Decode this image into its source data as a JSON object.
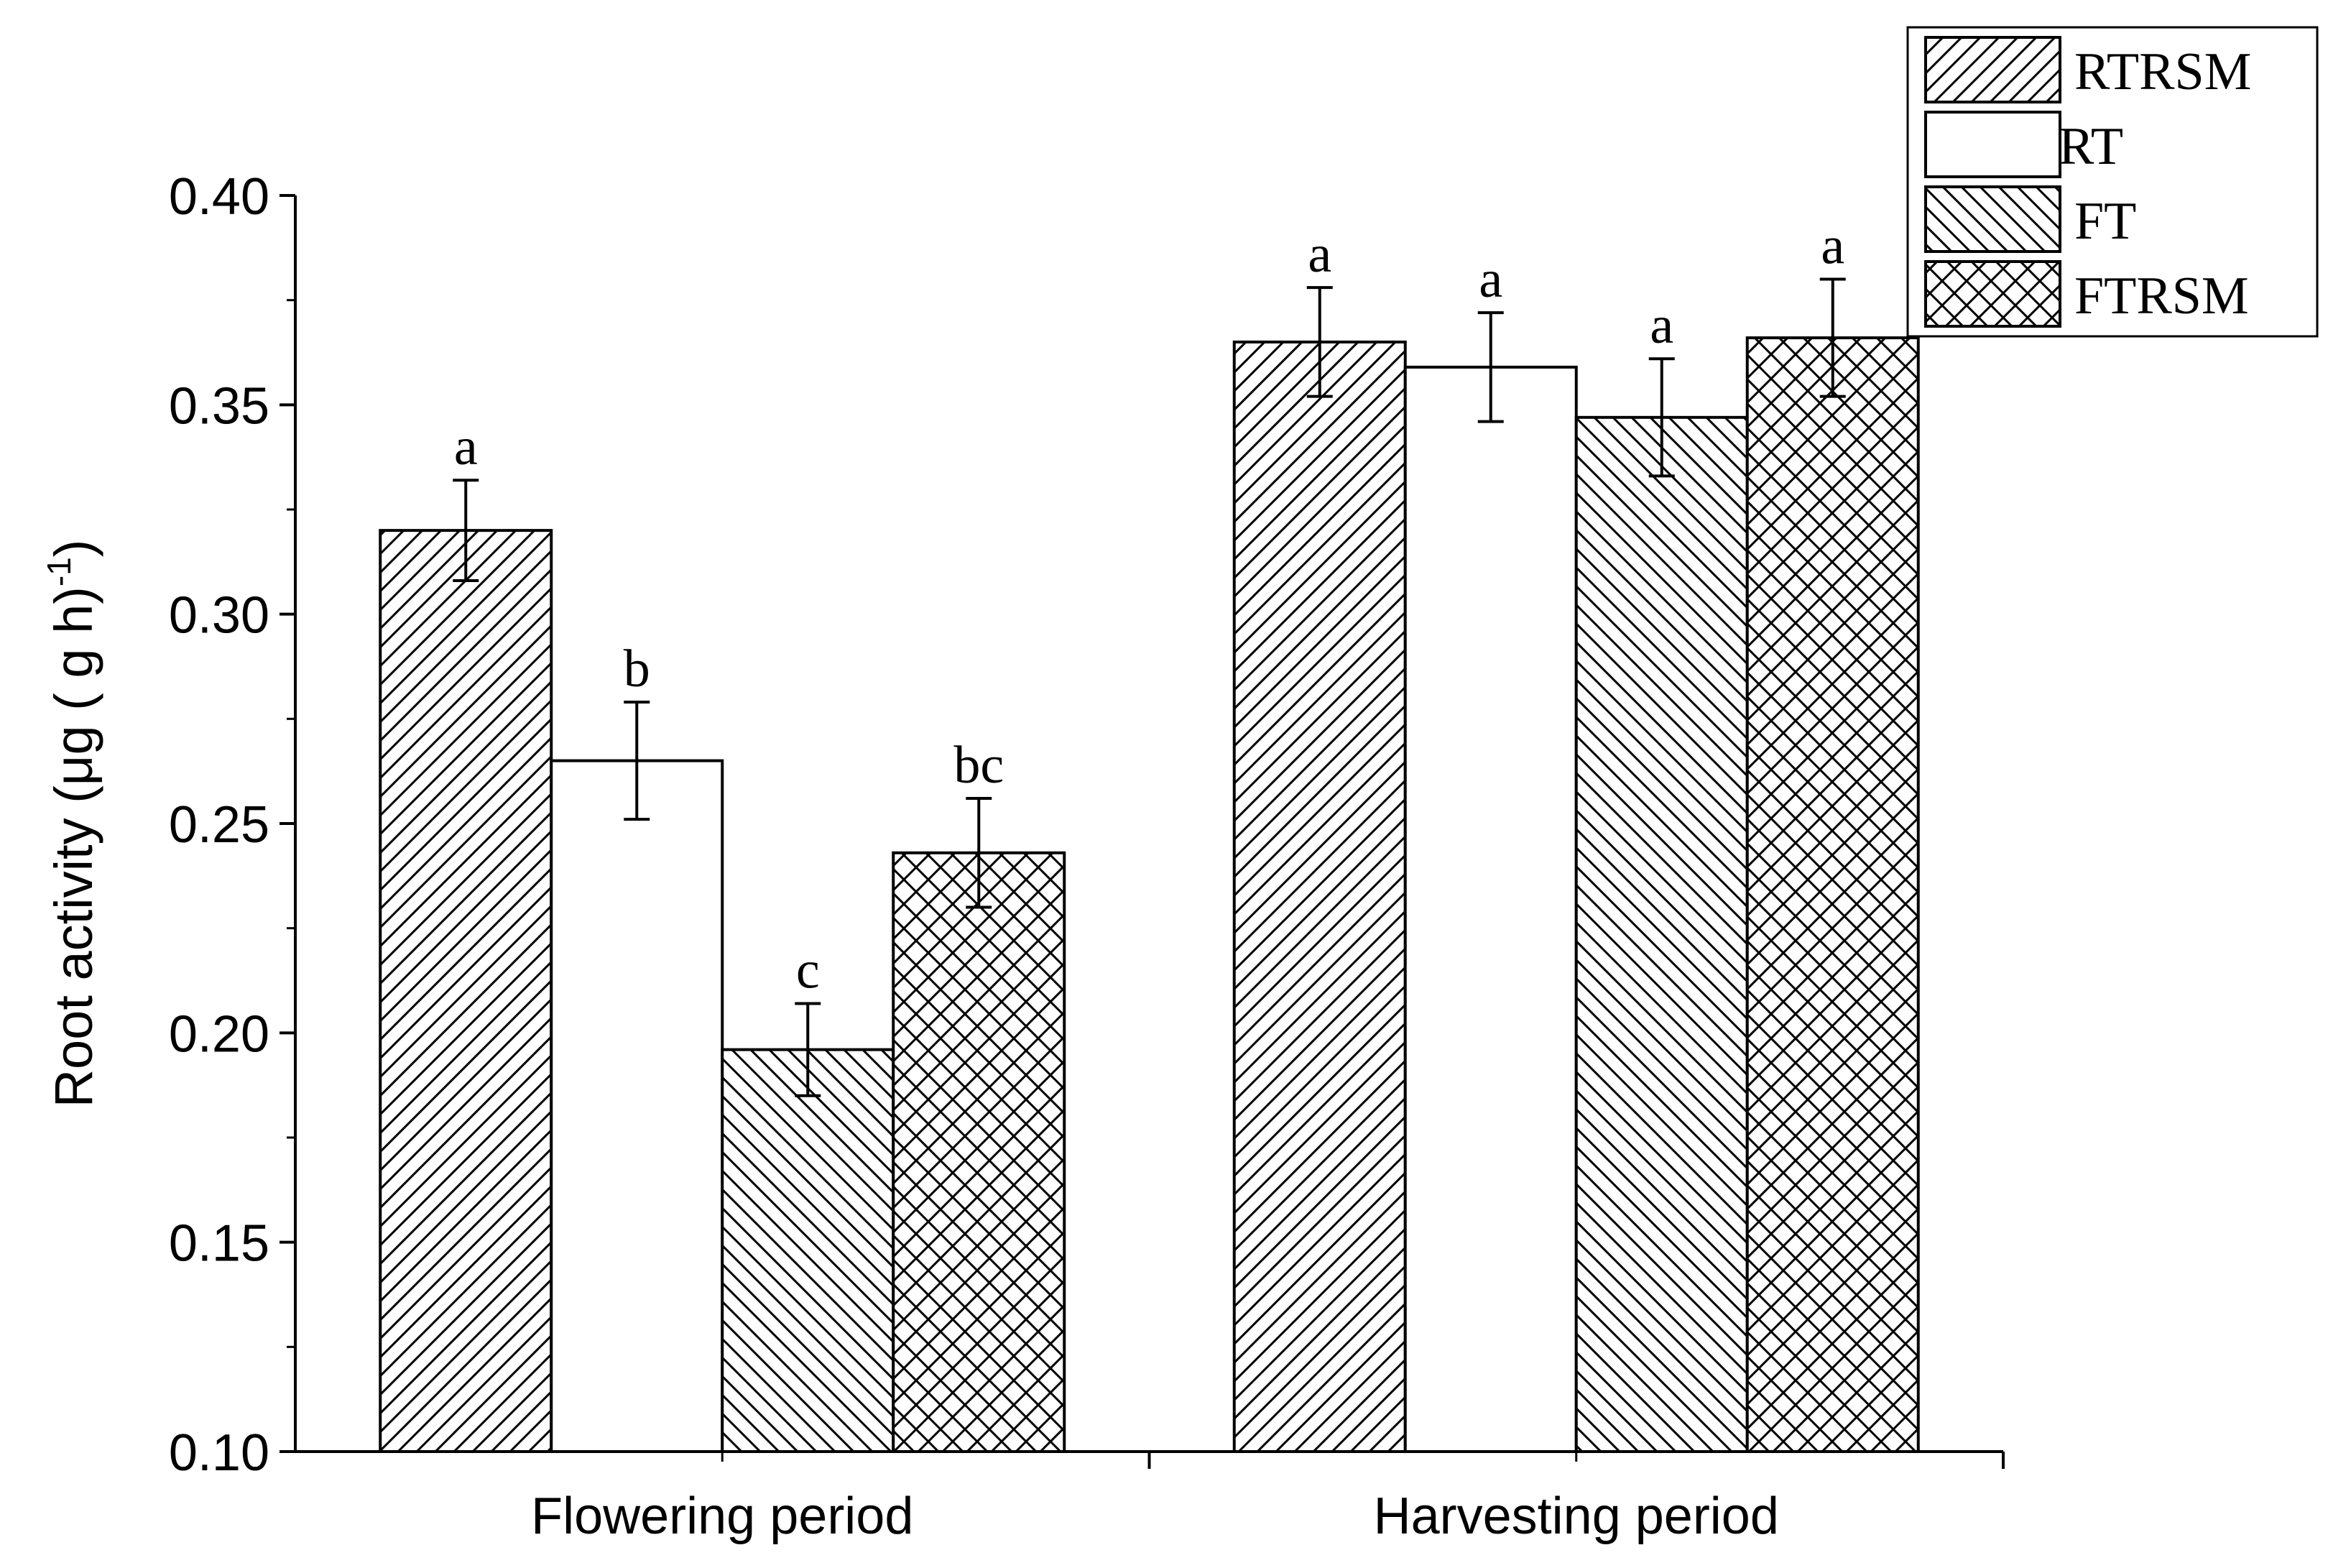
{
  "chart_data": {
    "type": "bar",
    "title": "",
    "xlabel": "",
    "ylabel_main": "Root activity (μg ( g h)",
    "ylabel_sup": "-1",
    "ylabel_close": ")",
    "ylim": [
      0.1,
      0.4
    ],
    "yticks": [
      "0.10",
      "0.15",
      "0.20",
      "0.25",
      "0.30",
      "0.35",
      "0.40"
    ],
    "yticks_values": [
      0.1,
      0.15,
      0.2,
      0.25,
      0.3,
      0.35,
      0.4
    ],
    "categories": [
      "Flowering period",
      "Harvesting period"
    ],
    "series": [
      {
        "name": "RTRSM",
        "pattern": "diag-right",
        "values": [
          0.32,
          0.365
        ],
        "errors": [
          0.012,
          0.013
        ],
        "letters": [
          "a",
          "a"
        ]
      },
      {
        "name": "RT",
        "pattern": "none",
        "values": [
          0.265,
          0.359
        ],
        "errors": [
          0.014,
          0.013
        ],
        "letters": [
          "b",
          "a"
        ]
      },
      {
        "name": "FT",
        "pattern": "diag-left",
        "values": [
          0.196,
          0.347
        ],
        "errors": [
          0.011,
          0.014
        ],
        "letters": [
          "c",
          "a"
        ]
      },
      {
        "name": "FTRSM",
        "pattern": "cross",
        "values": [
          0.243,
          0.366
        ],
        "errors": [
          0.013,
          0.014
        ],
        "letters": [
          "bc",
          "a"
        ]
      }
    ],
    "legend_position": "top-right",
    "colors": {
      "stroke": "#000000",
      "fill": "#ffffff"
    }
  }
}
